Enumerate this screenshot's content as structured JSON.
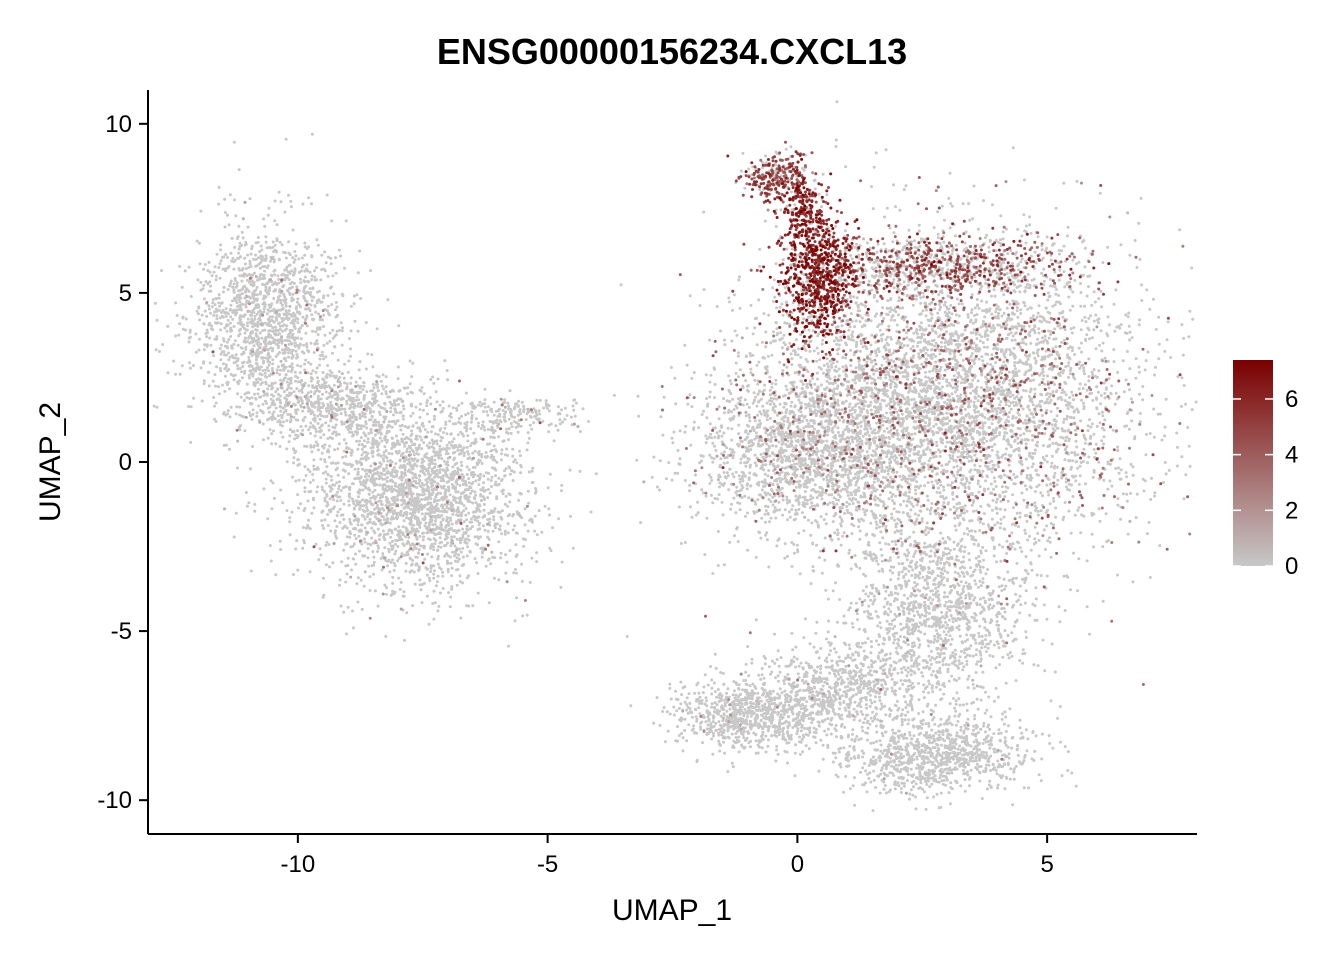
{
  "chart_data": {
    "type": "scatter",
    "title": "ENSG00000156234.CXCL13",
    "xlabel": "UMAP_1",
    "ylabel": "UMAP_2",
    "xlim": [
      -13,
      8
    ],
    "ylim": [
      -11,
      11
    ],
    "x_ticks": [
      -10,
      -5,
      0,
      5
    ],
    "y_ticks": [
      -10,
      -5,
      0,
      5,
      10
    ],
    "grid": false,
    "legend": {
      "placement": "right",
      "type": "colorbar",
      "min": 0,
      "max": 7.4,
      "ticks": [
        0,
        2,
        4,
        6
      ],
      "color_low": "#c8c8c8",
      "color_high": "#7a0000"
    },
    "clusters": [
      {
        "name_hint": "left-upper-arm",
        "cx": -10.6,
        "cy": 4.2,
        "sx": 0.75,
        "sy": 1.4,
        "n": 1500,
        "expr_frac": 0.03,
        "expr_mean": 1.6
      },
      {
        "name_hint": "left-lower-blob",
        "cx": -7.6,
        "cy": -1.0,
        "sx": 1.1,
        "sy": 1.3,
        "n": 2400,
        "expr_frac": 0.025,
        "expr_mean": 1.8
      },
      {
        "name_hint": "left-connector",
        "cx": -9.2,
        "cy": 1.6,
        "sx": 0.8,
        "sy": 0.6,
        "n": 600,
        "expr_frac": 0.03,
        "expr_mean": 1.6
      },
      {
        "name_hint": "left-tail",
        "cx": -5.6,
        "cy": 1.4,
        "sx": 0.7,
        "sy": 0.25,
        "n": 160,
        "expr_frac": 0.05,
        "expr_mean": 2.0
      },
      {
        "name_hint": "right-main-body",
        "cx": 3.0,
        "cy": 1.8,
        "sx": 1.9,
        "sy": 2.3,
        "n": 5200,
        "expr_frac": 0.16,
        "expr_mean": 3.4
      },
      {
        "name_hint": "right-left-lobe",
        "cx": 0.2,
        "cy": 0.4,
        "sx": 1.1,
        "sy": 1.2,
        "n": 1600,
        "expr_frac": 0.07,
        "expr_mean": 2.6
      },
      {
        "name_hint": "right-upper-band",
        "cx": 2.6,
        "cy": 5.8,
        "sx": 1.5,
        "sy": 0.45,
        "n": 900,
        "expr_frac": 0.55,
        "expr_mean": 4.6
      },
      {
        "name_hint": "right-stem-high",
        "cx": 0.4,
        "cy": 5.4,
        "sx": 0.35,
        "sy": 0.9,
        "n": 700,
        "expr_frac": 0.9,
        "expr_mean": 6.2
      },
      {
        "name_hint": "right-top-hook",
        "cx": -0.4,
        "cy": 8.4,
        "sx": 0.35,
        "sy": 0.35,
        "n": 300,
        "expr_frac": 0.75,
        "expr_mean": 4.8
      },
      {
        "name_hint": "right-hook-link",
        "cx": 0.1,
        "cy": 7.4,
        "sx": 0.25,
        "sy": 0.45,
        "n": 200,
        "expr_frac": 0.85,
        "expr_mean": 6.0
      },
      {
        "name_hint": "right-lower-neck",
        "cx": 2.8,
        "cy": -4.6,
        "sx": 0.9,
        "sy": 1.3,
        "n": 1200,
        "expr_frac": 0.02,
        "expr_mean": 1.5
      },
      {
        "name_hint": "right-bottom-left-foot",
        "cx": -0.9,
        "cy": -7.5,
        "sx": 0.8,
        "sy": 0.55,
        "n": 900,
        "expr_frac": 0.02,
        "expr_mean": 1.5
      },
      {
        "name_hint": "right-bottom-right-foot",
        "cx": 2.7,
        "cy": -8.6,
        "sx": 0.9,
        "sy": 0.55,
        "n": 1000,
        "expr_frac": 0.01,
        "expr_mean": 1.4
      },
      {
        "name_hint": "right-bottom-link",
        "cx": 0.9,
        "cy": -6.6,
        "sx": 0.8,
        "sy": 0.6,
        "n": 600,
        "expr_frac": 0.02,
        "expr_mean": 1.4
      }
    ]
  }
}
